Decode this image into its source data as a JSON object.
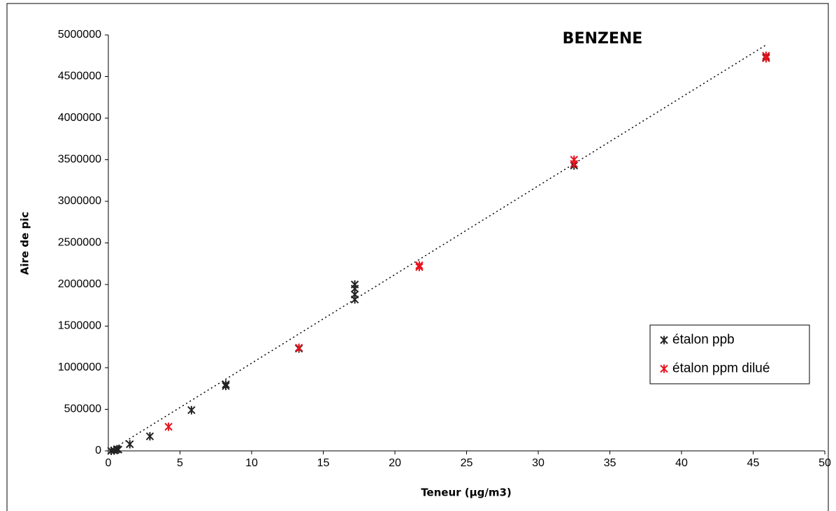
{
  "chart_data": {
    "type": "scatter",
    "title": "BENZENE",
    "x_label": "Teneur (µg/m3)",
    "y_label": "Aire de pic",
    "xlim": [
      0,
      50
    ],
    "xticks": [
      0,
      5,
      10,
      15,
      20,
      25,
      30,
      35,
      40,
      45,
      50
    ],
    "ylim": [
      0,
      5000000
    ],
    "yticks": [
      0,
      500000,
      1000000,
      1500000,
      2000000,
      2500000,
      3000000,
      3500000,
      4000000,
      4500000,
      5000000
    ],
    "legend": "right",
    "series": [
      {
        "name": "étalon ppb",
        "color": "#222222",
        "x": [
          0.2,
          0.4,
          0.6,
          0.7,
          1.5,
          2.9,
          5.8,
          8.2,
          8.2,
          13.3,
          17.2,
          17.2,
          17.2,
          17.2,
          32.5,
          45.9
        ],
        "values": [
          0,
          5000,
          20000,
          15000,
          80000,
          175000,
          490000,
          780000,
          800000,
          1230000,
          1820000,
          1880000,
          1950000,
          2000000,
          3430000,
          4730000
        ]
      },
      {
        "name": "étalon ppm dilué",
        "color": "#e8141e",
        "x": [
          4.2,
          13.3,
          21.7,
          21.7,
          32.5,
          32.5,
          45.9,
          45.9
        ],
        "values": [
          290000,
          1240000,
          2210000,
          2230000,
          3450000,
          3500000,
          4720000,
          4750000
        ]
      }
    ],
    "trendline": {
      "color": "#000000",
      "x": [
        0.2,
        45.9
      ],
      "values": [
        10000,
        4880000
      ]
    }
  }
}
